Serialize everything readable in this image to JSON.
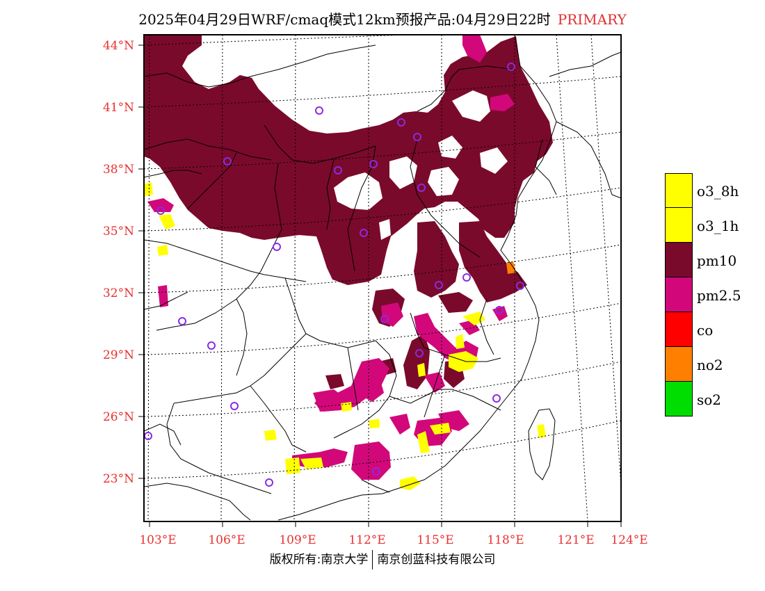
{
  "header": {
    "title": "2025年04月29日WRF/cmaq模式12km预报产品:04月29日22时",
    "primary_label": "PRIMARY"
  },
  "axes": {
    "lat_labels": [
      "44°N",
      "41°N",
      "38°N",
      "35°N",
      "32°N",
      "29°N",
      "26°N",
      "23°N"
    ],
    "lon_labels": [
      "103°E",
      "106°E",
      "109°E",
      "112°E",
      "115°E",
      "118°E",
      "121°E",
      "124°E"
    ]
  },
  "legend": {
    "items": [
      {
        "label": "o3_8h",
        "color": "#ffff00"
      },
      {
        "label": "o3_1h",
        "color": "#ffff00"
      },
      {
        "label": "pm10",
        "color": "#7a0a2c"
      },
      {
        "label": "pm2.5",
        "color": "#d2087a"
      },
      {
        "label": "co",
        "color": "#ff0000"
      },
      {
        "label": "no2",
        "color": "#ff8000"
      },
      {
        "label": "so2",
        "color": "#00dd00"
      }
    ]
  },
  "footer": {
    "left": "版权所有:南京大学",
    "right": "南京创蓝科技有限公司"
  },
  "colors": {
    "pm10": "#7a0a2c",
    "pm25": "#d2087a",
    "o3": "#ffff00",
    "no2": "#ff8000",
    "city_marker": "#8a2be2"
  }
}
